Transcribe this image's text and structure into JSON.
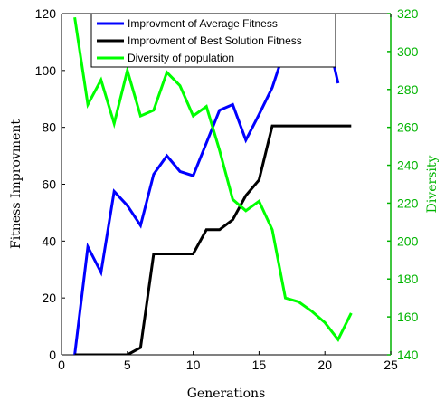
{
  "chart_data": {
    "type": "line",
    "xlabel": "Generations",
    "ylabel_left": "Fitness Improvment",
    "ylabel_right": "Diversity",
    "xlim": [
      0,
      25
    ],
    "ylim_left": [
      0,
      120
    ],
    "ylim_right": [
      140,
      320
    ],
    "x_ticks": [
      0,
      5,
      10,
      15,
      20,
      25
    ],
    "y_left_ticks": [
      0,
      20,
      40,
      60,
      80,
      100,
      120
    ],
    "y_right_ticks": [
      140,
      160,
      180,
      200,
      220,
      240,
      260,
      280,
      300,
      320
    ],
    "grid": false,
    "legend_position": "top-center",
    "colors": {
      "left_axis": "#000000",
      "right_axis": "#00b400"
    },
    "series": [
      {
        "name": "Improvment of Average Fitness",
        "color": "#0000ff",
        "axis": "left",
        "x": [
          1,
          2,
          3,
          4,
          5,
          6,
          7,
          8,
          9,
          10,
          11,
          12,
          13,
          14,
          15,
          16,
          17,
          18,
          19,
          20,
          21
        ],
        "values": [
          0,
          38,
          29,
          57.5,
          52.5,
          45.5,
          63.5,
          70,
          64.5,
          63,
          74.5,
          86,
          88,
          75.5,
          84.5,
          94,
          108,
          116,
          120,
          116,
          95.5
        ]
      },
      {
        "name": "Improvment of Best Solution Fitness",
        "color": "#000000",
        "axis": "left",
        "x": [
          1,
          2,
          3,
          4,
          5,
          6,
          7,
          8,
          9,
          10,
          11,
          12,
          13,
          14,
          15,
          16,
          17,
          18,
          19,
          20,
          21,
          22
        ],
        "values": [
          0,
          0,
          0,
          0,
          0,
          2.5,
          35.5,
          35.5,
          35.5,
          35.5,
          44,
          44,
          47.5,
          56,
          61.5,
          80.5,
          80.5,
          80.5,
          80.5,
          80.5,
          80.5,
          80.5
        ]
      },
      {
        "name": "Diversity of population",
        "color": "#00ff00",
        "axis": "right",
        "x": [
          1,
          2,
          3,
          4,
          5,
          6,
          7,
          8,
          9,
          10,
          11,
          12,
          13,
          14,
          15,
          16,
          17,
          18,
          19,
          20,
          21,
          22
        ],
        "values": [
          318,
          272,
          285,
          262,
          290,
          266,
          269,
          289,
          282,
          266,
          271,
          248,
          222,
          216,
          221,
          206,
          170,
          168,
          163,
          157,
          148,
          162
        ]
      }
    ]
  }
}
